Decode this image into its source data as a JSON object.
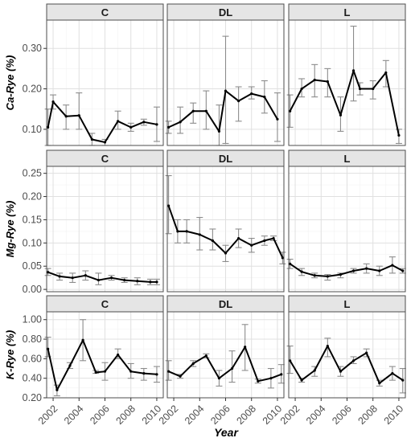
{
  "chart_data": {
    "type": "line",
    "xlabel": "Year",
    "x": [
      2002,
      2003,
      2004,
      2005,
      2006,
      2007,
      2008,
      2009,
      2010
    ],
    "x_ticks": [
      2002,
      2004,
      2006,
      2008,
      2010
    ],
    "x_range": [
      2001.5,
      2010.5
    ],
    "panels_columns": [
      "C",
      "DL",
      "L"
    ],
    "grid": true,
    "rows": [
      {
        "ylabel": "Ca-Rye (%)",
        "ylim": [
          0.06,
          0.37
        ],
        "y_ticks": [
          0.1,
          0.2,
          0.3
        ],
        "y_tick_labels": [
          "0.10",
          "0.20",
          "0.30"
        ],
        "panels": [
          {
            "strip": "C",
            "values": [
              0.105,
              0.168,
              0.132,
              0.134,
              0.075,
              0.068,
              0.12,
              0.105,
              0.118,
              0.112
            ],
            "x": [
              2001.6,
              2002,
              2003,
              2004,
              2005,
              2006,
              2007,
              2008,
              2009,
              2010
            ],
            "err": [
              [
                0.06,
                0.15
              ],
              [
                0.15,
                0.185
              ],
              [
                0.1,
                0.16
              ],
              [
                0.1,
                0.19
              ],
              [
                0.06,
                0.09
              ],
              [
                0.06,
                0.075
              ],
              [
                0.1,
                0.145
              ],
              [
                0.095,
                0.115
              ],
              [
                0.11,
                0.125
              ],
              [
                0.07,
                0.155
              ]
            ]
          },
          {
            "strip": "DL",
            "values": [
              0.105,
              0.118,
              0.145,
              0.145,
              0.095,
              0.195,
              0.17,
              0.188,
              0.18,
              0.125
            ],
            "x": [
              2001.6,
              2002.5,
              2003.5,
              2004.5,
              2005.5,
              2006,
              2007,
              2008,
              2009,
              2010
            ],
            "err": [
              [
                0.09,
                0.12
              ],
              [
                0.09,
                0.155
              ],
              [
                0.115,
                0.165
              ],
              [
                0.1,
                0.195
              ],
              [
                0.06,
                0.16
              ],
              [
                0.065,
                0.33
              ],
              [
                0.12,
                0.205
              ],
              [
                0.175,
                0.205
              ],
              [
                0.14,
                0.22
              ],
              [
                0.07,
                0.19
              ]
            ]
          },
          {
            "strip": "L",
            "values": [
              0.145,
              0.2,
              0.222,
              0.218,
              0.135,
              0.245,
              0.2,
              0.2,
              0.24,
              0.085
            ],
            "x": [
              2001.6,
              2002.5,
              2003.5,
              2004.5,
              2005.5,
              2006.5,
              2007,
              2008,
              2009,
              2010
            ],
            "err": [
              [
                0.105,
                0.185
              ],
              [
                0.18,
                0.225
              ],
              [
                0.18,
                0.26
              ],
              [
                0.18,
                0.25
              ],
              [
                0.095,
                0.18
              ],
              [
                0.17,
                0.355
              ],
              [
                0.185,
                0.215
              ],
              [
                0.175,
                0.22
              ],
              [
                0.205,
                0.27
              ],
              [
                0.065,
                0.1
              ]
            ]
          }
        ]
      },
      {
        "ylabel": "Mg-Rye (%)",
        "ylim": [
          -0.005,
          0.265
        ],
        "y_ticks": [
          0.0,
          0.05,
          0.1,
          0.15,
          0.2,
          0.25
        ],
        "y_tick_labels": [
          "0.00",
          "0.05",
          "0.10",
          "0.15",
          "0.20",
          "0.25"
        ],
        "panels": [
          {
            "strip": "C",
            "values": [
              0.037,
              0.028,
              0.025,
              0.03,
              0.02,
              0.025,
              0.02,
              0.018,
              0.016,
              0.016
            ],
            "x": [
              2001.6,
              2002.5,
              2003.5,
              2004.5,
              2005.5,
              2006.5,
              2007.5,
              2008.5,
              2009.5,
              2010
            ],
            "err": [
              [
                0.03,
                0.045
              ],
              [
                0.02,
                0.035
              ],
              [
                0.015,
                0.035
              ],
              [
                0.02,
                0.04
              ],
              [
                0.01,
                0.035
              ],
              [
                0.02,
                0.03
              ],
              [
                0.015,
                0.025
              ],
              [
                0.01,
                0.025
              ],
              [
                0.01,
                0.022
              ],
              [
                0.01,
                0.022
              ]
            ]
          },
          {
            "strip": "DL",
            "values": [
              0.18,
              0.125,
              0.125,
              0.118,
              0.105,
              0.078,
              0.11,
              0.095,
              0.105,
              0.11,
              0.068
            ],
            "x": [
              2001.6,
              2002.3,
              2003,
              2004,
              2005,
              2006,
              2007,
              2008,
              2009,
              2009.7,
              2010.4
            ],
            "err": [
              [
                0.12,
                0.245
              ],
              [
                0.1,
                0.15
              ],
              [
                0.1,
                0.15
              ],
              [
                0.085,
                0.155
              ],
              [
                0.085,
                0.13
              ],
              [
                0.06,
                0.095
              ],
              [
                0.09,
                0.13
              ],
              [
                0.08,
                0.11
              ],
              [
                0.095,
                0.115
              ],
              [
                0.105,
                0.115
              ],
              [
                0.055,
                0.08
              ]
            ]
          },
          {
            "strip": "L",
            "values": [
              0.055,
              0.038,
              0.03,
              0.028,
              0.032,
              0.04,
              0.045,
              0.04,
              0.052,
              0.04
            ],
            "x": [
              2001.6,
              2002.5,
              2003.5,
              2004.5,
              2005.5,
              2006.5,
              2007.5,
              2008.5,
              2009.5,
              2010.3
            ],
            "err": [
              [
                0.045,
                0.065
              ],
              [
                0.03,
                0.045
              ],
              [
                0.025,
                0.035
              ],
              [
                0.02,
                0.032
              ],
              [
                0.025,
                0.035
              ],
              [
                0.035,
                0.045
              ],
              [
                0.035,
                0.055
              ],
              [
                0.03,
                0.05
              ],
              [
                0.035,
                0.07
              ],
              [
                0.035,
                0.045
              ]
            ]
          }
        ]
      },
      {
        "ylabel": "K-Rye (%)",
        "ylim": [
          0.2,
          1.08
        ],
        "y_ticks": [
          0.2,
          0.4,
          0.6,
          0.8,
          1.0
        ],
        "y_tick_labels": [
          "0.20",
          "0.40",
          "0.60",
          "0.80",
          "1.00"
        ],
        "panels": [
          {
            "strip": "C",
            "values": [
              0.7,
              0.28,
              0.53,
              0.79,
              0.46,
              0.47,
              0.64,
              0.47,
              0.45,
              0.44
            ],
            "x": [
              2001.6,
              2002.3,
              2003.3,
              2004.3,
              2005.3,
              2006,
              2007,
              2008,
              2009,
              2010
            ],
            "err": [
              [
                0.62,
                0.82
              ],
              [
                0.22,
                0.33
              ],
              [
                0.5,
                0.56
              ],
              [
                0.58,
                1.0
              ],
              [
                0.45,
                0.48
              ],
              [
                0.38,
                0.56
              ],
              [
                0.6,
                0.7
              ],
              [
                0.4,
                0.55
              ],
              [
                0.38,
                0.5
              ],
              [
                0.36,
                0.52
              ]
            ]
          },
          {
            "strip": "DL",
            "values": [
              0.47,
              0.42,
              0.55,
              0.63,
              0.4,
              0.5,
              0.72,
              0.37,
              0.4,
              0.44
            ],
            "x": [
              2001.6,
              2002.5,
              2003.5,
              2004.5,
              2005.5,
              2006.5,
              2007.5,
              2008.5,
              2009.5,
              2010.3
            ],
            "err": [
              [
                0.38,
                0.58
              ],
              [
                0.4,
                0.44
              ],
              [
                0.52,
                0.58
              ],
              [
                0.61,
                0.65
              ],
              [
                0.32,
                0.48
              ],
              [
                0.36,
                0.68
              ],
              [
                0.48,
                0.95
              ],
              [
                0.35,
                0.39
              ],
              [
                0.3,
                0.5
              ],
              [
                0.35,
                0.54
              ]
            ]
          },
          {
            "strip": "L",
            "values": [
              0.58,
              0.38,
              0.48,
              0.73,
              0.47,
              0.58,
              0.66,
              0.35,
              0.45,
              0.38
            ],
            "x": [
              2001.6,
              2002.5,
              2003.5,
              2004.5,
              2005.5,
              2006.5,
              2007.5,
              2008.5,
              2009.5,
              2010.3
            ],
            "err": [
              [
                0.45,
                0.73
              ],
              [
                0.36,
                0.4
              ],
              [
                0.42,
                0.52
              ],
              [
                0.62,
                0.81
              ],
              [
                0.42,
                0.52
              ],
              [
                0.55,
                0.62
              ],
              [
                0.62,
                0.7
              ],
              [
                0.32,
                0.38
              ],
              [
                0.38,
                0.52
              ],
              [
                0.25,
                0.5
              ]
            ]
          }
        ]
      }
    ],
    "colors": {
      "line": "#000000",
      "errorbar": "#8c8c8c",
      "strip_fill": "#e5e5e5",
      "grid_major": "#e0e0e0",
      "grid_minor": "#f2f2f2",
      "panel_border": "#4d4d4d"
    }
  }
}
